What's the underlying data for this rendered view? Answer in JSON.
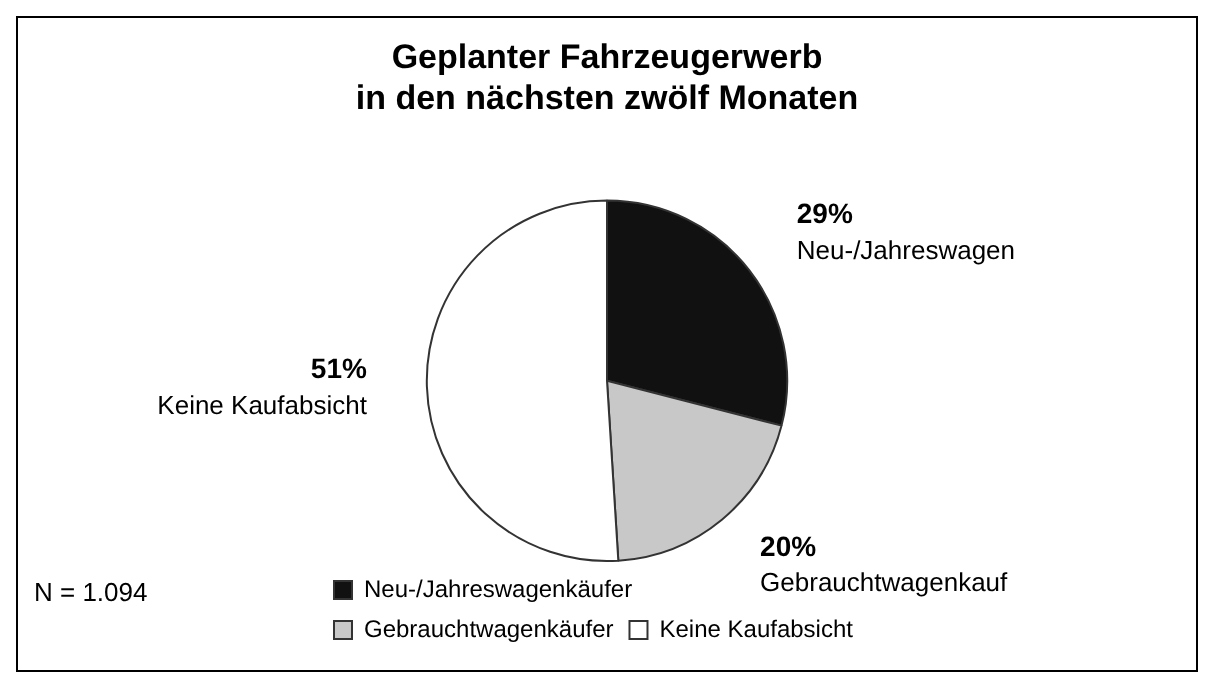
{
  "chart_data": {
    "type": "pie",
    "title": "Geplanter Fahrzeugerwerb\nin den nächsten zwölf Monaten",
    "categories": [
      "Neu-/Jahreswagenkäufer",
      "Gebrauchtwagenkäufer",
      "Keine Kaufabsicht"
    ],
    "values": [
      29,
      20,
      51
    ],
    "colors": [
      "#111111",
      "#c8c8c8",
      "#ffffff"
    ],
    "value_labels": [
      "29%",
      "20%",
      "51%"
    ],
    "annotations": [
      "Neu-/Jahreswagen",
      "Gebrauchtwagenkauf",
      "Keine Kaufabsicht",
      "N = 1.094"
    ],
    "legend": "bottom"
  }
}
